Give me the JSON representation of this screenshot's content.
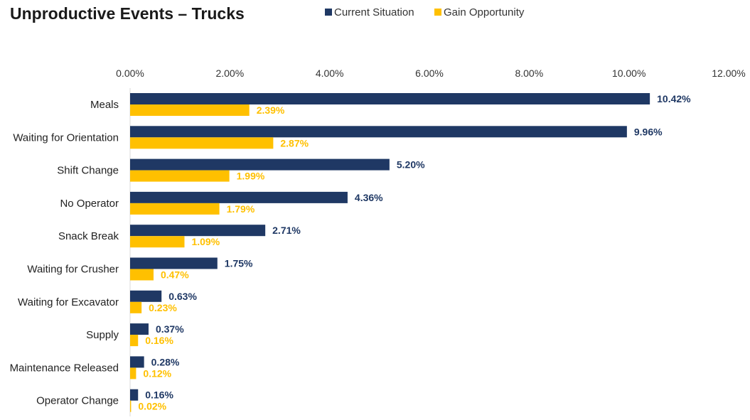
{
  "chart_data": {
    "type": "bar",
    "orientation": "horizontal",
    "title": "Unproductive Events – Trucks",
    "xlabel": "",
    "ylabel": "",
    "xlim": [
      0,
      12
    ],
    "x_ticks": [
      "0.00%",
      "2.00%",
      "4.00%",
      "6.00%",
      "8.00%",
      "10.00%",
      "12.00%"
    ],
    "x_tick_values": [
      0,
      2,
      4,
      6,
      8,
      10,
      12
    ],
    "grid": false,
    "legend_position": "top",
    "categories": [
      "Meals",
      "Waiting for Orientation",
      "Shift Change",
      "No Operator",
      "Snack Break",
      "Waiting for Crusher",
      "Waiting for Excavator",
      "Supply",
      "Maintenance Released",
      "Operator Change"
    ],
    "series": [
      {
        "name": "Current Situation",
        "color": "#1f3864",
        "values": [
          10.42,
          9.96,
          5.2,
          4.36,
          2.71,
          1.75,
          0.63,
          0.37,
          0.28,
          0.16
        ],
        "labels": [
          "10.42%",
          "9.96%",
          "5.20%",
          "4.36%",
          "2.71%",
          "1.75%",
          "0.63%",
          "0.37%",
          "0.28%",
          "0.16%"
        ]
      },
      {
        "name": "Gain Opportunity",
        "color": "#ffc000",
        "values": [
          2.39,
          2.87,
          1.99,
          1.79,
          1.09,
          0.47,
          0.23,
          0.16,
          0.12,
          0.02
        ],
        "labels": [
          "2.39%",
          "2.87%",
          "1.99%",
          "1.79%",
          "1.09%",
          "0.47%",
          "0.23%",
          "0.16%",
          "0.12%",
          "0.02%"
        ]
      }
    ]
  }
}
